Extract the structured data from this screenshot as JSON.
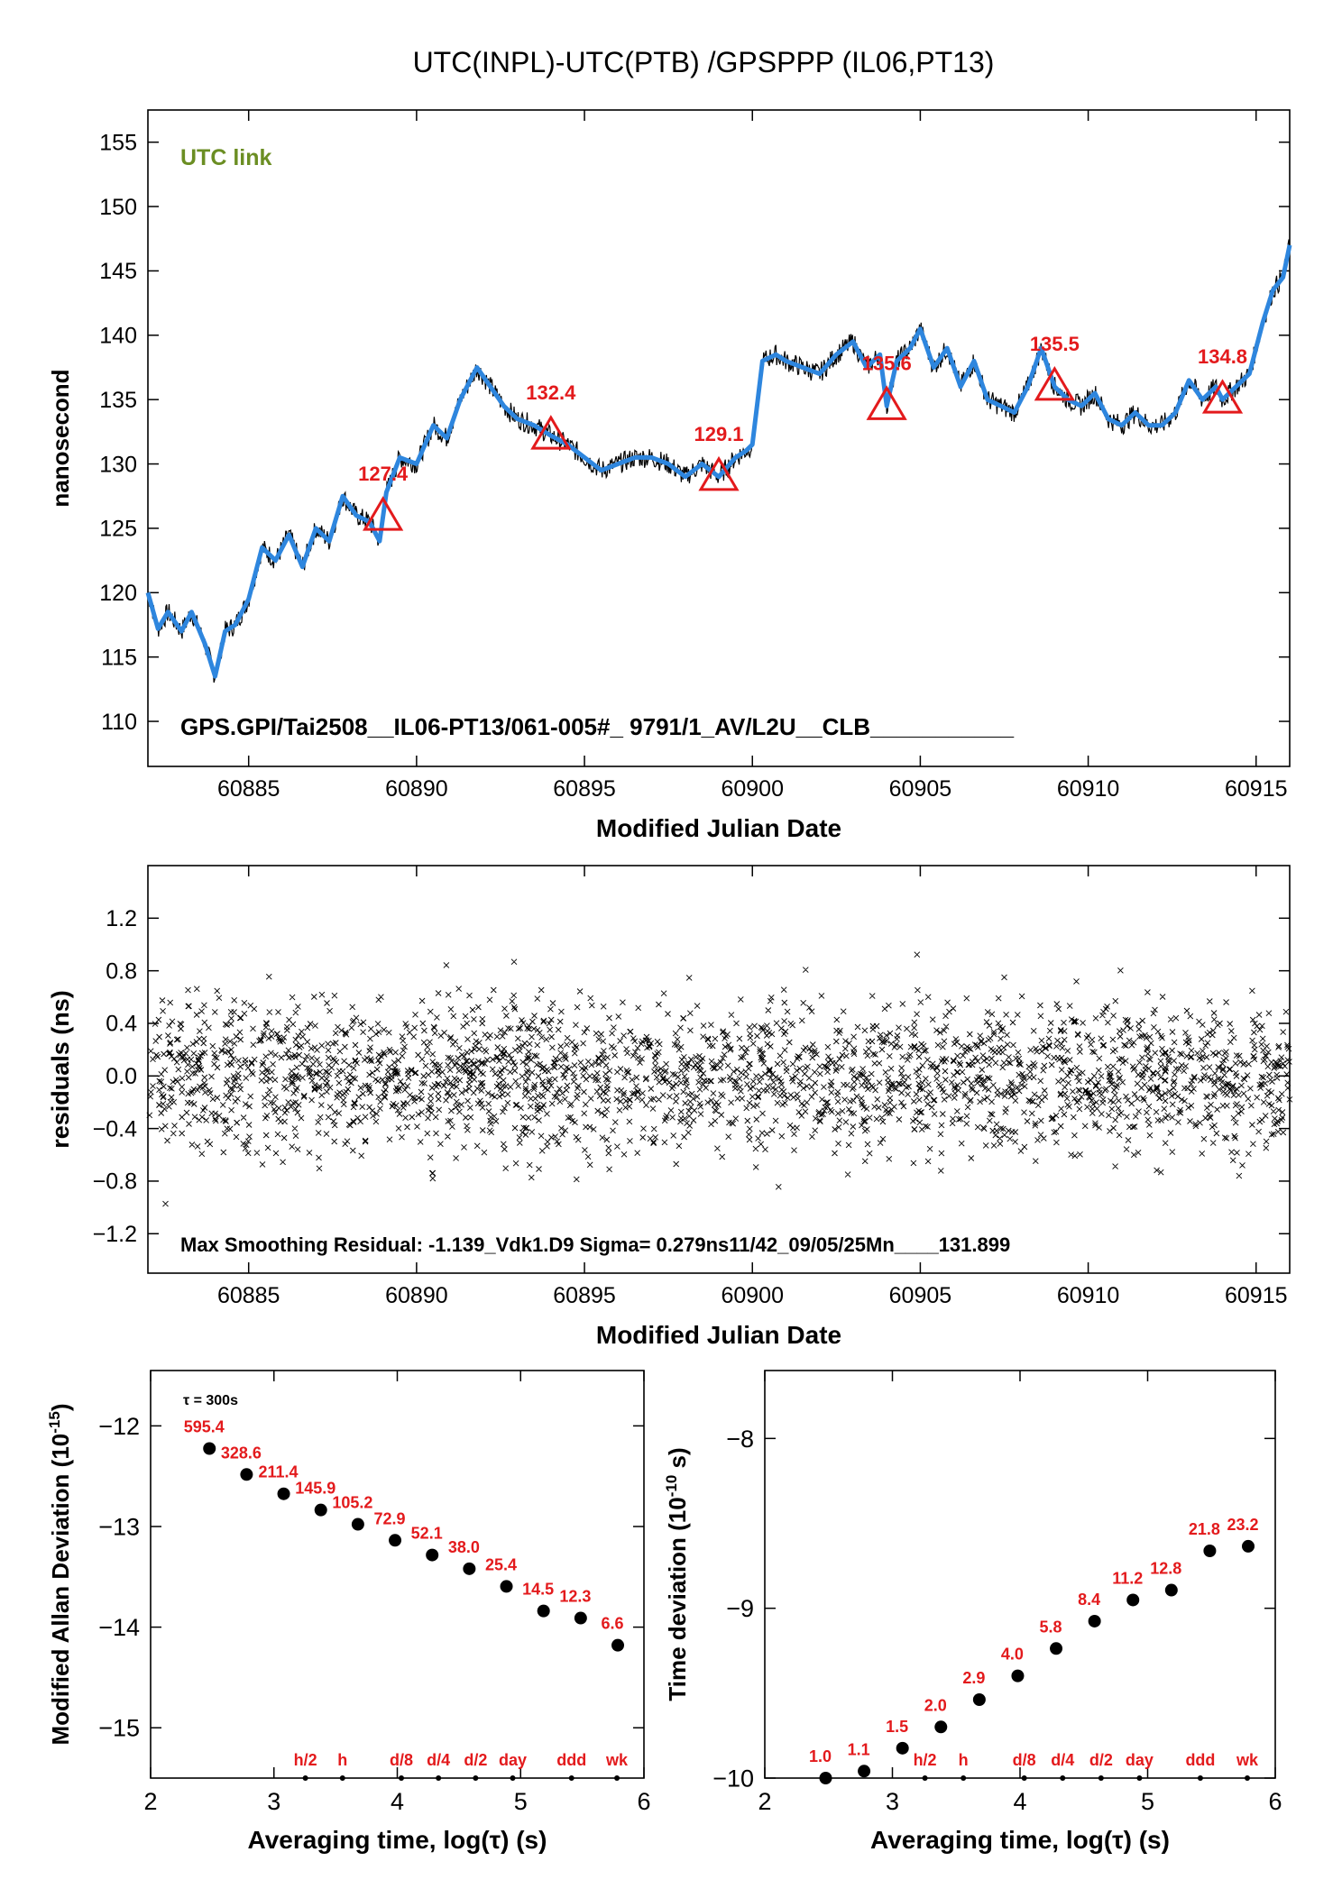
{
  "title": "UTC(INPL)-UTC(PTB)  /GPSPPP  (IL06,PT13)",
  "colors": {
    "fit": "#2e86de",
    "raw": "#000000",
    "accent": "#e31a1c",
    "legend": "#6b8e23"
  },
  "chart_data": [
    {
      "id": "main",
      "type": "line",
      "legend": "UTC link",
      "ylabel": "nanosecond",
      "xlabel": "Modified Julian Date",
      "xlim": [
        60882.0,
        60916.0
      ],
      "ylim": [
        106.5,
        157.5
      ],
      "xticks": [
        60885,
        60890,
        60895,
        60900,
        60905,
        60910,
        60915
      ],
      "yticks": [
        110,
        115,
        120,
        125,
        130,
        135,
        140,
        145,
        150,
        155
      ],
      "series": [
        {
          "style": "fit",
          "x": [
            60882.0,
            60882.3,
            60882.6,
            60883.0,
            60883.3,
            60883.7,
            60884.0,
            60884.3,
            60884.6,
            60885.0,
            60885.4,
            60885.8,
            60886.2,
            60886.6,
            60887.0,
            60887.4,
            60887.8,
            60888.2,
            60888.6,
            60888.9,
            60889.1,
            60889.5,
            60890.0,
            60890.5,
            60890.9,
            60891.3,
            60891.8,
            60892.2,
            60892.6,
            60893.0,
            60893.5,
            60894.0,
            60894.5,
            60895.0,
            60895.5,
            60896.0,
            60896.5,
            60897.0,
            60897.5,
            60898.0,
            60898.5,
            60899.0,
            60899.5,
            60899.8,
            60900.0,
            60900.3,
            60900.7,
            60901.0,
            60901.5,
            60902.0,
            60902.5,
            60903.0,
            60903.4,
            60903.8,
            60904.0,
            60904.3,
            60904.7,
            60905.0,
            60905.4,
            60905.8,
            60906.2,
            60906.6,
            60907.0,
            60907.4,
            60907.8,
            60908.2,
            60908.6,
            60909.0,
            60909.4,
            60909.8,
            60910.2,
            60910.6,
            60911.0,
            60911.4,
            60911.8,
            60912.2,
            60912.6,
            60913.0,
            60913.4,
            60913.8,
            60914.0,
            60914.4,
            60914.8,
            60915.2,
            60915.5,
            60915.8,
            60916.0
          ],
          "y": [
            120.0,
            117.2,
            118.5,
            117.0,
            118.5,
            116.0,
            113.5,
            117.0,
            117.5,
            119.5,
            123.5,
            122.5,
            124.5,
            122.0,
            125.0,
            124.0,
            127.5,
            126.0,
            125.5,
            124.0,
            127.8,
            130.5,
            130.0,
            133.0,
            132.0,
            135.0,
            137.5,
            136.0,
            134.5,
            133.5,
            133.0,
            132.2,
            131.5,
            130.5,
            129.5,
            130.0,
            130.5,
            130.5,
            130.0,
            129.0,
            130.0,
            129.0,
            130.5,
            131.0,
            131.5,
            138.0,
            138.5,
            138.0,
            137.5,
            137.0,
            138.5,
            139.5,
            137.5,
            138.5,
            134.5,
            138.0,
            139.0,
            140.5,
            137.5,
            139.0,
            136.0,
            138.0,
            135.0,
            134.5,
            134.0,
            136.0,
            139.0,
            136.0,
            135.0,
            134.5,
            135.5,
            133.5,
            133.0,
            134.0,
            133.0,
            133.0,
            134.0,
            136.5,
            135.0,
            136.0,
            135.0,
            136.0,
            137.0,
            141.0,
            143.5,
            144.5,
            147.0
          ]
        }
      ],
      "markers": {
        "x": [
          60889.0,
          60894.0,
          60899.0,
          60904.0,
          60909.0,
          60914.0
        ],
        "labels": [
          "127.4",
          "132.4",
          "129.1",
          "135.6",
          "135.5",
          "134.8"
        ]
      },
      "annotations": [
        "GPS.GPI/Tai2508__IL06-PT13/061-005#_  9791/1_AV/L2U__CLB___________"
      ]
    },
    {
      "id": "residuals",
      "type": "scatter",
      "ylabel": "residuals (ns)",
      "xlabel": "Modified Julian Date",
      "xlim": [
        60882.0,
        60916.0
      ],
      "ylim": [
        -1.5,
        1.6
      ],
      "xticks": [
        60885,
        60890,
        60895,
        60900,
        60905,
        60910,
        60915
      ],
      "yticks": [
        -1.2,
        -0.8,
        -0.4,
        0.0,
        0.4,
        0.8,
        1.2
      ],
      "ytick_labels": [
        "−1.2",
        "−0.8",
        "−0.4",
        "0.0",
        "0.4",
        "0.8",
        "1.2"
      ],
      "sigma_ns": 0.279,
      "max_residual_ns": -1.139,
      "annotations": [
        "Max Smoothing Residual: -1.139_Vdk1.D9  Sigma= 0.279ns11/42_09/05/25Mn____131.899"
      ]
    },
    {
      "id": "mdev",
      "type": "scatter",
      "ylabel": "Modified Allan Deviation (10",
      "ylabel_exp": "-15",
      "ylabel_end": ")",
      "xlabel": "Averaging time, log(τ) (s)",
      "xlim": [
        2,
        6
      ],
      "ylim": [
        -15.5,
        -11.45
      ],
      "xticks": [
        2,
        3,
        4,
        5,
        6
      ],
      "yticks": [
        -15,
        -14,
        -13,
        -12
      ],
      "ytick_labels": [
        "−15",
        "−14",
        "−13",
        "−12"
      ],
      "tau0_label": "τ = 300s",
      "x": [
        2.477,
        2.778,
        3.079,
        3.38,
        3.681,
        3.982,
        4.283,
        4.584,
        4.885,
        5.186,
        5.487,
        5.788
      ],
      "y": [
        -12.225,
        -12.483,
        -12.675,
        -12.836,
        -12.978,
        -13.137,
        -13.283,
        -13.42,
        -13.595,
        -13.839,
        -13.91,
        -14.18
      ],
      "point_labels": [
        "595.4",
        "328.6",
        "211.4",
        "145.9",
        "105.2",
        "72.9",
        "52.1",
        "38.0",
        "25.4",
        "14.5",
        "12.3",
        "6.6"
      ],
      "ref_x": [
        3.255,
        3.556,
        4.033,
        4.334,
        4.635,
        4.936,
        5.413,
        5.781
      ],
      "ref_labels": [
        "h/2",
        "h",
        "d/8",
        "d/4",
        "d/2",
        "day",
        "ddd",
        "wk"
      ]
    },
    {
      "id": "tdev",
      "type": "scatter",
      "ylabel": "Time deviation (10",
      "ylabel_exp": "-10",
      "ylabel_end": " s)",
      "xlabel": "Averaging time, log(τ) (s)",
      "xlim": [
        2,
        6
      ],
      "ylim": [
        -10.0,
        -7.6
      ],
      "xticks": [
        2,
        3,
        4,
        5,
        6
      ],
      "yticks": [
        -10,
        -9,
        -8
      ],
      "ytick_labels": [
        "−10",
        "−9",
        "−8"
      ],
      "x": [
        2.477,
        2.778,
        3.079,
        3.38,
        3.681,
        3.982,
        4.283,
        4.584,
        4.885,
        5.186,
        5.487,
        5.788
      ],
      "y": [
        -10.0,
        -9.959,
        -9.824,
        -9.699,
        -9.538,
        -9.398,
        -9.237,
        -9.076,
        -8.951,
        -8.893,
        -8.662,
        -8.635
      ],
      "point_labels": [
        "1.0",
        "1.1",
        "1.5",
        "2.0",
        "2.9",
        "4.0",
        "5.8",
        "8.4",
        "11.2",
        "12.8",
        "21.8",
        "23.2"
      ],
      "ref_x": [
        3.255,
        3.556,
        4.033,
        4.334,
        4.635,
        4.936,
        5.413,
        5.781
      ],
      "ref_labels": [
        "h/2",
        "h",
        "d/8",
        "d/4",
        "d/2",
        "day",
        "ddd",
        "wk"
      ]
    }
  ]
}
